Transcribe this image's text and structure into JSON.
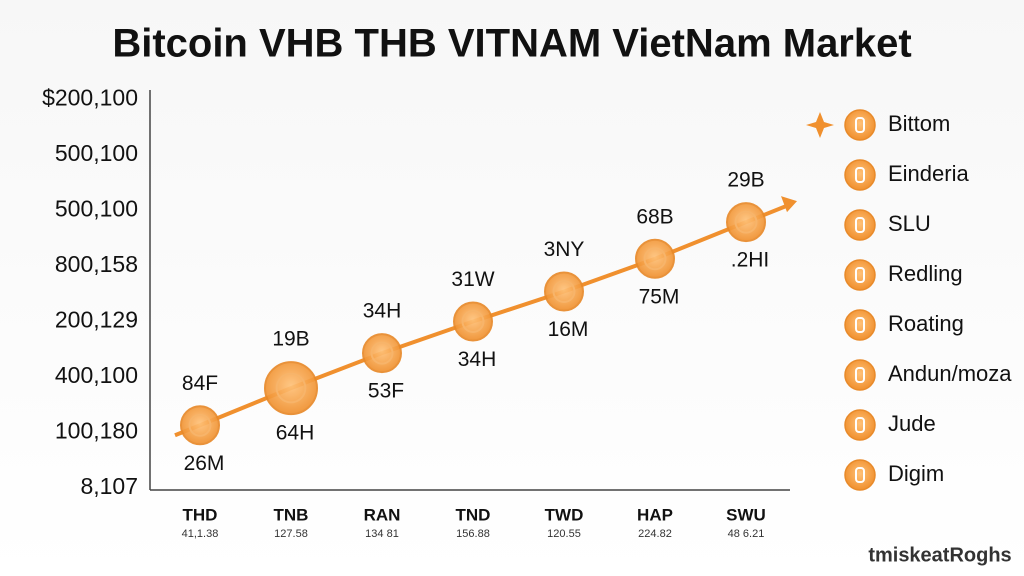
{
  "chart_data": {
    "type": "line",
    "title": "Bitcoin VHB THB VITNAM VietNam Market",
    "watermark": "tmiskeatRoghs",
    "y_labels": [
      "8,107",
      "100,180",
      "400,100",
      "200,129",
      "800,158",
      "500,100",
      "500,100",
      "$200,100"
    ],
    "categories": [
      "THD",
      "TNB",
      "RAN",
      "TND",
      "TWD",
      "HAP",
      "SWU"
    ],
    "category_sublabels": [
      "41,1.38",
      "127.58",
      "134 81",
      "156.88",
      "120.55",
      "224.82",
      "48 6.21"
    ],
    "values": [
      1.13,
      1.8,
      2.43,
      3.0,
      3.54,
      4.13,
      4.79
    ],
    "ylim": [
      0,
      7
    ],
    "labels_above": [
      "84F",
      "19B",
      "34H",
      "31W",
      "3NY",
      "68B",
      "29B"
    ],
    "labels_below": [
      "26M",
      "64H",
      "53F",
      "34H",
      "16M",
      "75M",
      ".2HI"
    ],
    "color": "#f0902e",
    "legend": [
      "Bittom",
      "Einderia",
      "SLU",
      "Redling",
      "Roating",
      "Andun/moza",
      "Jude",
      "Digim"
    ]
  }
}
